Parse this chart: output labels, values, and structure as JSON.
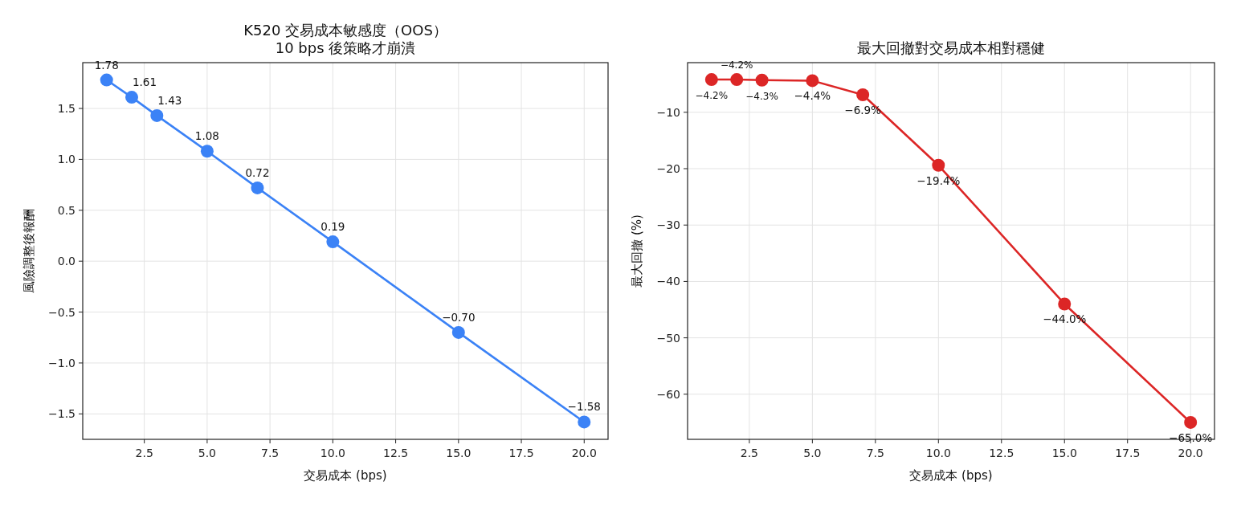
{
  "chart_data": [
    {
      "type": "line",
      "title": "K520 交易成本敏感度（OOS）\n10 bps 後策略才崩潰",
      "xlabel": "交易成本 (bps)",
      "ylabel": "風險調整後報酬",
      "x": [
        1,
        2,
        3,
        5,
        7,
        10,
        15,
        20
      ],
      "series": [
        {
          "color": "#3b82f6",
          "values": [
            1.78,
            1.61,
            1.43,
            1.08,
            0.72,
            0.19,
            -0.7,
            -1.58
          ],
          "value_labels": [
            "1.78",
            "1.61",
            "1.43",
            "1.08",
            "0.72",
            "0.19",
            "−0.70",
            "−1.58"
          ]
        }
      ],
      "xlim": [
        0.05,
        20.95
      ],
      "ylim": [
        -1.75,
        1.95
      ],
      "xticks": [
        {
          "value": 2.5,
          "label": "2.5"
        },
        {
          "value": 5,
          "label": "5.0"
        },
        {
          "value": 7.5,
          "label": "7.5"
        },
        {
          "value": 10,
          "label": "10.0"
        },
        {
          "value": 12.5,
          "label": "12.5"
        },
        {
          "value": 15,
          "label": "15.0"
        },
        {
          "value": 17.5,
          "label": "17.5"
        },
        {
          "value": 20,
          "label": "20.0"
        }
      ],
      "yticks": [
        {
          "value": -1.5,
          "label": "−1.5"
        },
        {
          "value": -1,
          "label": "−1.0"
        },
        {
          "value": -0.5,
          "label": "−0.5"
        },
        {
          "value": 0,
          "label": "0.0"
        },
        {
          "value": 0.5,
          "label": "0.5"
        },
        {
          "value": 1,
          "label": "1.0"
        },
        {
          "value": 1.5,
          "label": "1.5"
        }
      ],
      "grid": true,
      "marker": "circle",
      "line_style": "solid"
    },
    {
      "type": "line",
      "title": "最大回撤對交易成本相對穩健",
      "xlabel": "交易成本 (bps)",
      "ylabel": "最大回撤 (%)",
      "x": [
        1,
        2,
        3,
        5,
        7,
        10,
        15,
        20
      ],
      "series": [
        {
          "color": "#dc2626",
          "values": [
            -4.2,
            -4.2,
            -4.3,
            -4.4,
            -6.9,
            -19.4,
            -44.0,
            -65.0
          ],
          "value_labels": [
            "−4.2%",
            "−4.2%",
            "−4.3%",
            "−4.4%",
            "−6.9%",
            "−19.4%",
            "−44.0%",
            "−65.0%"
          ]
        }
      ],
      "xlim": [
        0.05,
        20.95
      ],
      "ylim": [
        -68.0,
        -1.2
      ],
      "xticks": [
        {
          "value": 2.5,
          "label": "2.5"
        },
        {
          "value": 5,
          "label": "5.0"
        },
        {
          "value": 7.5,
          "label": "7.5"
        },
        {
          "value": 10,
          "label": "10.0"
        },
        {
          "value": 12.5,
          "label": "12.5"
        },
        {
          "value": 15,
          "label": "15.0"
        },
        {
          "value": 17.5,
          "label": "17.5"
        },
        {
          "value": 20,
          "label": "20.0"
        }
      ],
      "yticks": [
        {
          "value": -60,
          "label": "−60"
        },
        {
          "value": -50,
          "label": "−50"
        },
        {
          "value": -40,
          "label": "−40"
        },
        {
          "value": -30,
          "label": "−30"
        },
        {
          "value": -20,
          "label": "−20"
        },
        {
          "value": -10,
          "label": "−10"
        }
      ],
      "grid": true,
      "marker": "circle",
      "line_style": "solid"
    }
  ]
}
